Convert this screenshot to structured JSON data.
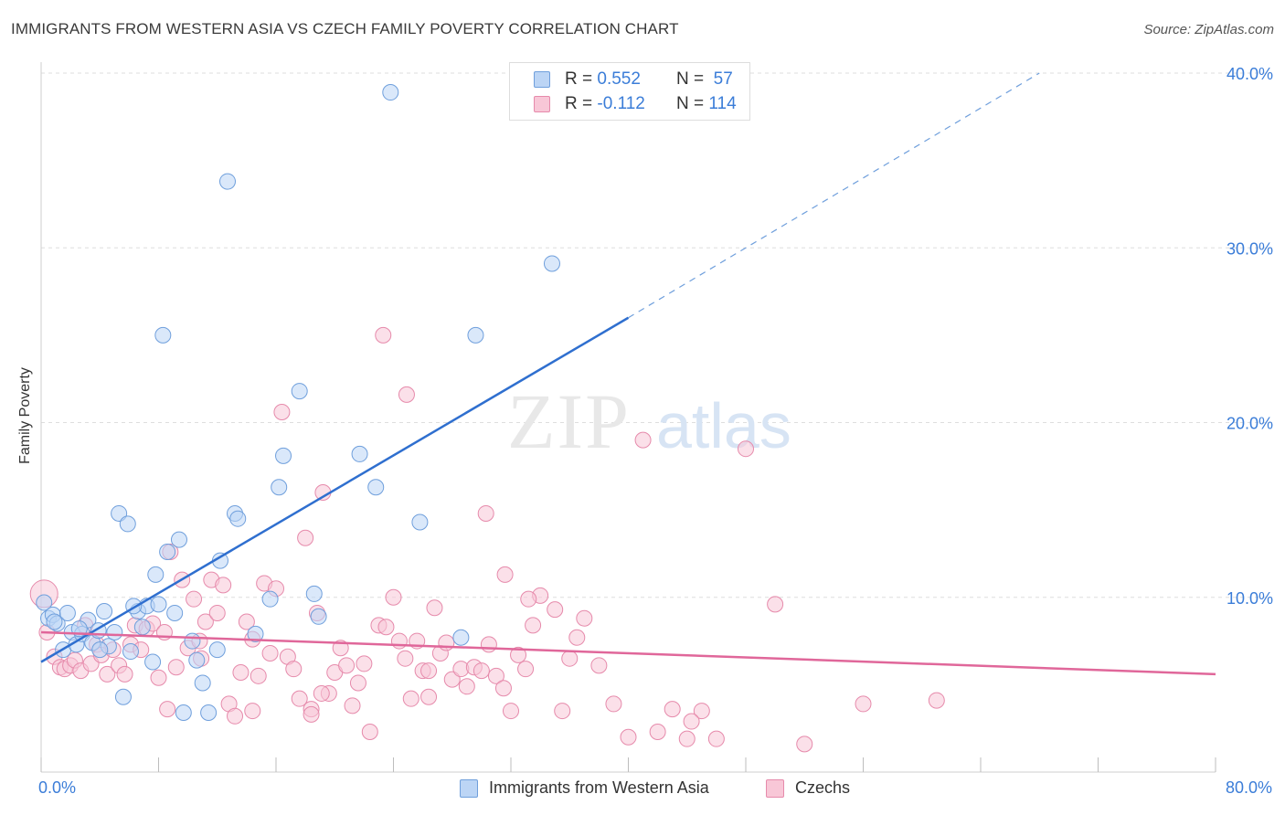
{
  "title": "IMMIGRANTS FROM WESTERN ASIA VS CZECH FAMILY POVERTY CORRELATION CHART",
  "source": "Source: ZipAtlas.com",
  "watermark": {
    "zip": "ZIP",
    "atlas": "atlas"
  },
  "legend": {
    "rows": [
      {
        "r_label": "R =",
        "r_value": "0.552",
        "n_label": "N =",
        "n_value": "57",
        "color": "#a9c8f0",
        "border": "#6f9fdc"
      },
      {
        "r_label": "R =",
        "r_value": "-0.112",
        "n_label": "N =",
        "n_value": "114",
        "color": "#f6bcd0",
        "border": "#e68aab"
      }
    ]
  },
  "bottom_legend": [
    {
      "label": "Immigrants from Western Asia",
      "color": "#bcd5f5",
      "border": "#6f9fdc"
    },
    {
      "label": "Czechs",
      "color": "#f8c7d7",
      "border": "#e68aab"
    }
  ],
  "chart_data": {
    "type": "scatter",
    "title": "IMMIGRANTS FROM WESTERN ASIA VS CZECH FAMILY POVERTY CORRELATION CHART",
    "xlabel": "",
    "ylabel": "Family Poverty",
    "xlim": [
      0,
      80
    ],
    "ylim": [
      0,
      40
    ],
    "x_tick_labels": [
      "0.0%",
      "80.0%"
    ],
    "y_tick_labels": [
      "10.0%",
      "20.0%",
      "30.0%",
      "40.0%"
    ],
    "y_ticks": [
      10,
      20,
      30,
      40
    ],
    "grid": true,
    "legend_position": "top-center",
    "series": [
      {
        "name": "Immigrants from Western Asia",
        "color": "#6f9fdc",
        "fill": "#bcd5f5",
        "trend": {
          "x0": 0,
          "y0": 6.3,
          "x1": 40,
          "y1": 26.0,
          "dash_to_x": 68,
          "dash_to_y": 40
        },
        "points": [
          [
            0.2,
            9.7
          ],
          [
            0.5,
            8.8
          ],
          [
            0.8,
            9.0
          ],
          [
            1.1,
            8.5
          ],
          [
            1.5,
            7.0
          ],
          [
            1.8,
            9.1
          ],
          [
            2.1,
            8.0
          ],
          [
            2.4,
            7.3
          ],
          [
            2.8,
            7.9
          ],
          [
            3.2,
            8.7
          ],
          [
            3.5,
            7.4
          ],
          [
            3.9,
            8.1
          ],
          [
            4.3,
            9.2
          ],
          [
            4.6,
            7.2
          ],
          [
            5.0,
            8.0
          ],
          [
            5.3,
            14.8
          ],
          [
            5.6,
            4.3
          ],
          [
            5.9,
            14.2
          ],
          [
            6.1,
            6.9
          ],
          [
            6.6,
            9.2
          ],
          [
            6.9,
            8.3
          ],
          [
            7.2,
            9.5
          ],
          [
            7.8,
            11.3
          ],
          [
            8.0,
            9.6
          ],
          [
            8.3,
            25.0
          ],
          [
            8.6,
            12.6
          ],
          [
            9.1,
            9.1
          ],
          [
            9.4,
            13.3
          ],
          [
            9.7,
            3.4
          ],
          [
            10.3,
            7.5
          ],
          [
            10.6,
            6.4
          ],
          [
            11.0,
            5.1
          ],
          [
            11.4,
            3.4
          ],
          [
            12.0,
            7.0
          ],
          [
            12.7,
            33.8
          ],
          [
            13.2,
            14.8
          ],
          [
            13.4,
            14.5
          ],
          [
            14.6,
            7.9
          ],
          [
            15.6,
            9.9
          ],
          [
            16.2,
            16.3
          ],
          [
            16.5,
            18.1
          ],
          [
            17.6,
            21.8
          ],
          [
            18.6,
            10.2
          ],
          [
            18.9,
            8.9
          ],
          [
            21.7,
            18.2
          ],
          [
            23.8,
            38.9
          ],
          [
            25.8,
            14.3
          ],
          [
            29.6,
            25.0
          ],
          [
            34.8,
            29.1
          ],
          [
            22.8,
            16.3
          ],
          [
            28.6,
            7.7
          ],
          [
            7.6,
            6.3
          ],
          [
            2.6,
            8.2
          ],
          [
            4.0,
            7.0
          ],
          [
            0.9,
            8.6
          ],
          [
            12.2,
            12.1
          ],
          [
            6.3,
            9.5
          ]
        ]
      },
      {
        "name": "Czechs",
        "color": "#e68aab",
        "fill": "#f8c7d7",
        "trend": {
          "x0": 0,
          "y0": 8.0,
          "x1": 80,
          "y1": 5.6
        },
        "points": [
          [
            0.2,
            10.2
          ],
          [
            0.4,
            8.0
          ],
          [
            0.9,
            6.6
          ],
          [
            1.3,
            6.0
          ],
          [
            1.6,
            5.9
          ],
          [
            2.0,
            6.1
          ],
          [
            2.3,
            6.4
          ],
          [
            2.7,
            5.8
          ],
          [
            3.0,
            8.4
          ],
          [
            3.4,
            6.2
          ],
          [
            3.8,
            7.3
          ],
          [
            4.1,
            6.7
          ],
          [
            4.5,
            5.6
          ],
          [
            4.9,
            7.0
          ],
          [
            5.3,
            6.1
          ],
          [
            5.7,
            5.6
          ],
          [
            6.1,
            7.3
          ],
          [
            6.4,
            8.4
          ],
          [
            6.8,
            7.0
          ],
          [
            7.2,
            8.2
          ],
          [
            7.6,
            8.5
          ],
          [
            8.0,
            5.4
          ],
          [
            8.4,
            8.0
          ],
          [
            8.8,
            12.6
          ],
          [
            9.2,
            6.0
          ],
          [
            9.6,
            11.0
          ],
          [
            10.0,
            7.1
          ],
          [
            10.4,
            9.9
          ],
          [
            10.8,
            7.5
          ],
          [
            11.2,
            8.6
          ],
          [
            11.6,
            11.0
          ],
          [
            12.0,
            9.1
          ],
          [
            12.4,
            10.7
          ],
          [
            12.8,
            3.9
          ],
          [
            13.2,
            3.2
          ],
          [
            13.6,
            5.7
          ],
          [
            14.0,
            8.6
          ],
          [
            14.4,
            7.6
          ],
          [
            14.8,
            5.5
          ],
          [
            15.2,
            10.8
          ],
          [
            15.6,
            6.8
          ],
          [
            16.0,
            10.5
          ],
          [
            16.4,
            20.6
          ],
          [
            16.8,
            6.6
          ],
          [
            17.2,
            5.9
          ],
          [
            17.6,
            4.2
          ],
          [
            18.0,
            13.4
          ],
          [
            18.4,
            3.6
          ],
          [
            18.8,
            9.1
          ],
          [
            19.2,
            16.0
          ],
          [
            19.6,
            4.5
          ],
          [
            20.0,
            5.7
          ],
          [
            20.4,
            7.1
          ],
          [
            20.8,
            6.1
          ],
          [
            21.2,
            3.8
          ],
          [
            21.6,
            5.1
          ],
          [
            22.0,
            6.2
          ],
          [
            22.4,
            2.3
          ],
          [
            23.0,
            8.4
          ],
          [
            23.5,
            8.3
          ],
          [
            24.0,
            10.0
          ],
          [
            24.4,
            7.5
          ],
          [
            24.8,
            6.5
          ],
          [
            25.2,
            4.2
          ],
          [
            25.6,
            7.5
          ],
          [
            26.0,
            5.8
          ],
          [
            26.4,
            5.8
          ],
          [
            26.8,
            9.4
          ],
          [
            27.2,
            6.8
          ],
          [
            27.6,
            7.4
          ],
          [
            28.0,
            5.3
          ],
          [
            28.6,
            5.9
          ],
          [
            29.0,
            4.9
          ],
          [
            29.5,
            6.0
          ],
          [
            30.0,
            5.8
          ],
          [
            30.5,
            7.3
          ],
          [
            31.0,
            5.5
          ],
          [
            31.5,
            4.8
          ],
          [
            32.0,
            3.5
          ],
          [
            32.5,
            6.7
          ],
          [
            33.0,
            5.9
          ],
          [
            33.5,
            8.4
          ],
          [
            34.0,
            10.1
          ],
          [
            35.0,
            9.3
          ],
          [
            35.5,
            3.5
          ],
          [
            36.0,
            6.5
          ],
          [
            36.5,
            7.7
          ],
          [
            37.0,
            8.8
          ],
          [
            38.0,
            6.1
          ],
          [
            39.0,
            3.9
          ],
          [
            40.0,
            2.0
          ],
          [
            41.0,
            19.0
          ],
          [
            42.0,
            2.3
          ],
          [
            43.0,
            3.6
          ],
          [
            44.0,
            1.9
          ],
          [
            45.0,
            3.5
          ],
          [
            46.0,
            1.9
          ],
          [
            48.0,
            18.5
          ],
          [
            50.0,
            9.6
          ],
          [
            52.0,
            1.6
          ],
          [
            56.0,
            3.9
          ],
          [
            61.0,
            4.1
          ],
          [
            44.3,
            2.9
          ],
          [
            23.3,
            25.0
          ],
          [
            24.9,
            21.6
          ],
          [
            30.3,
            14.8
          ],
          [
            31.6,
            11.3
          ],
          [
            33.2,
            9.9
          ],
          [
            14.4,
            3.5
          ],
          [
            10.9,
            6.5
          ],
          [
            19.1,
            4.5
          ],
          [
            8.6,
            3.6
          ],
          [
            18.4,
            3.3
          ],
          [
            26.4,
            4.3
          ]
        ]
      }
    ]
  }
}
